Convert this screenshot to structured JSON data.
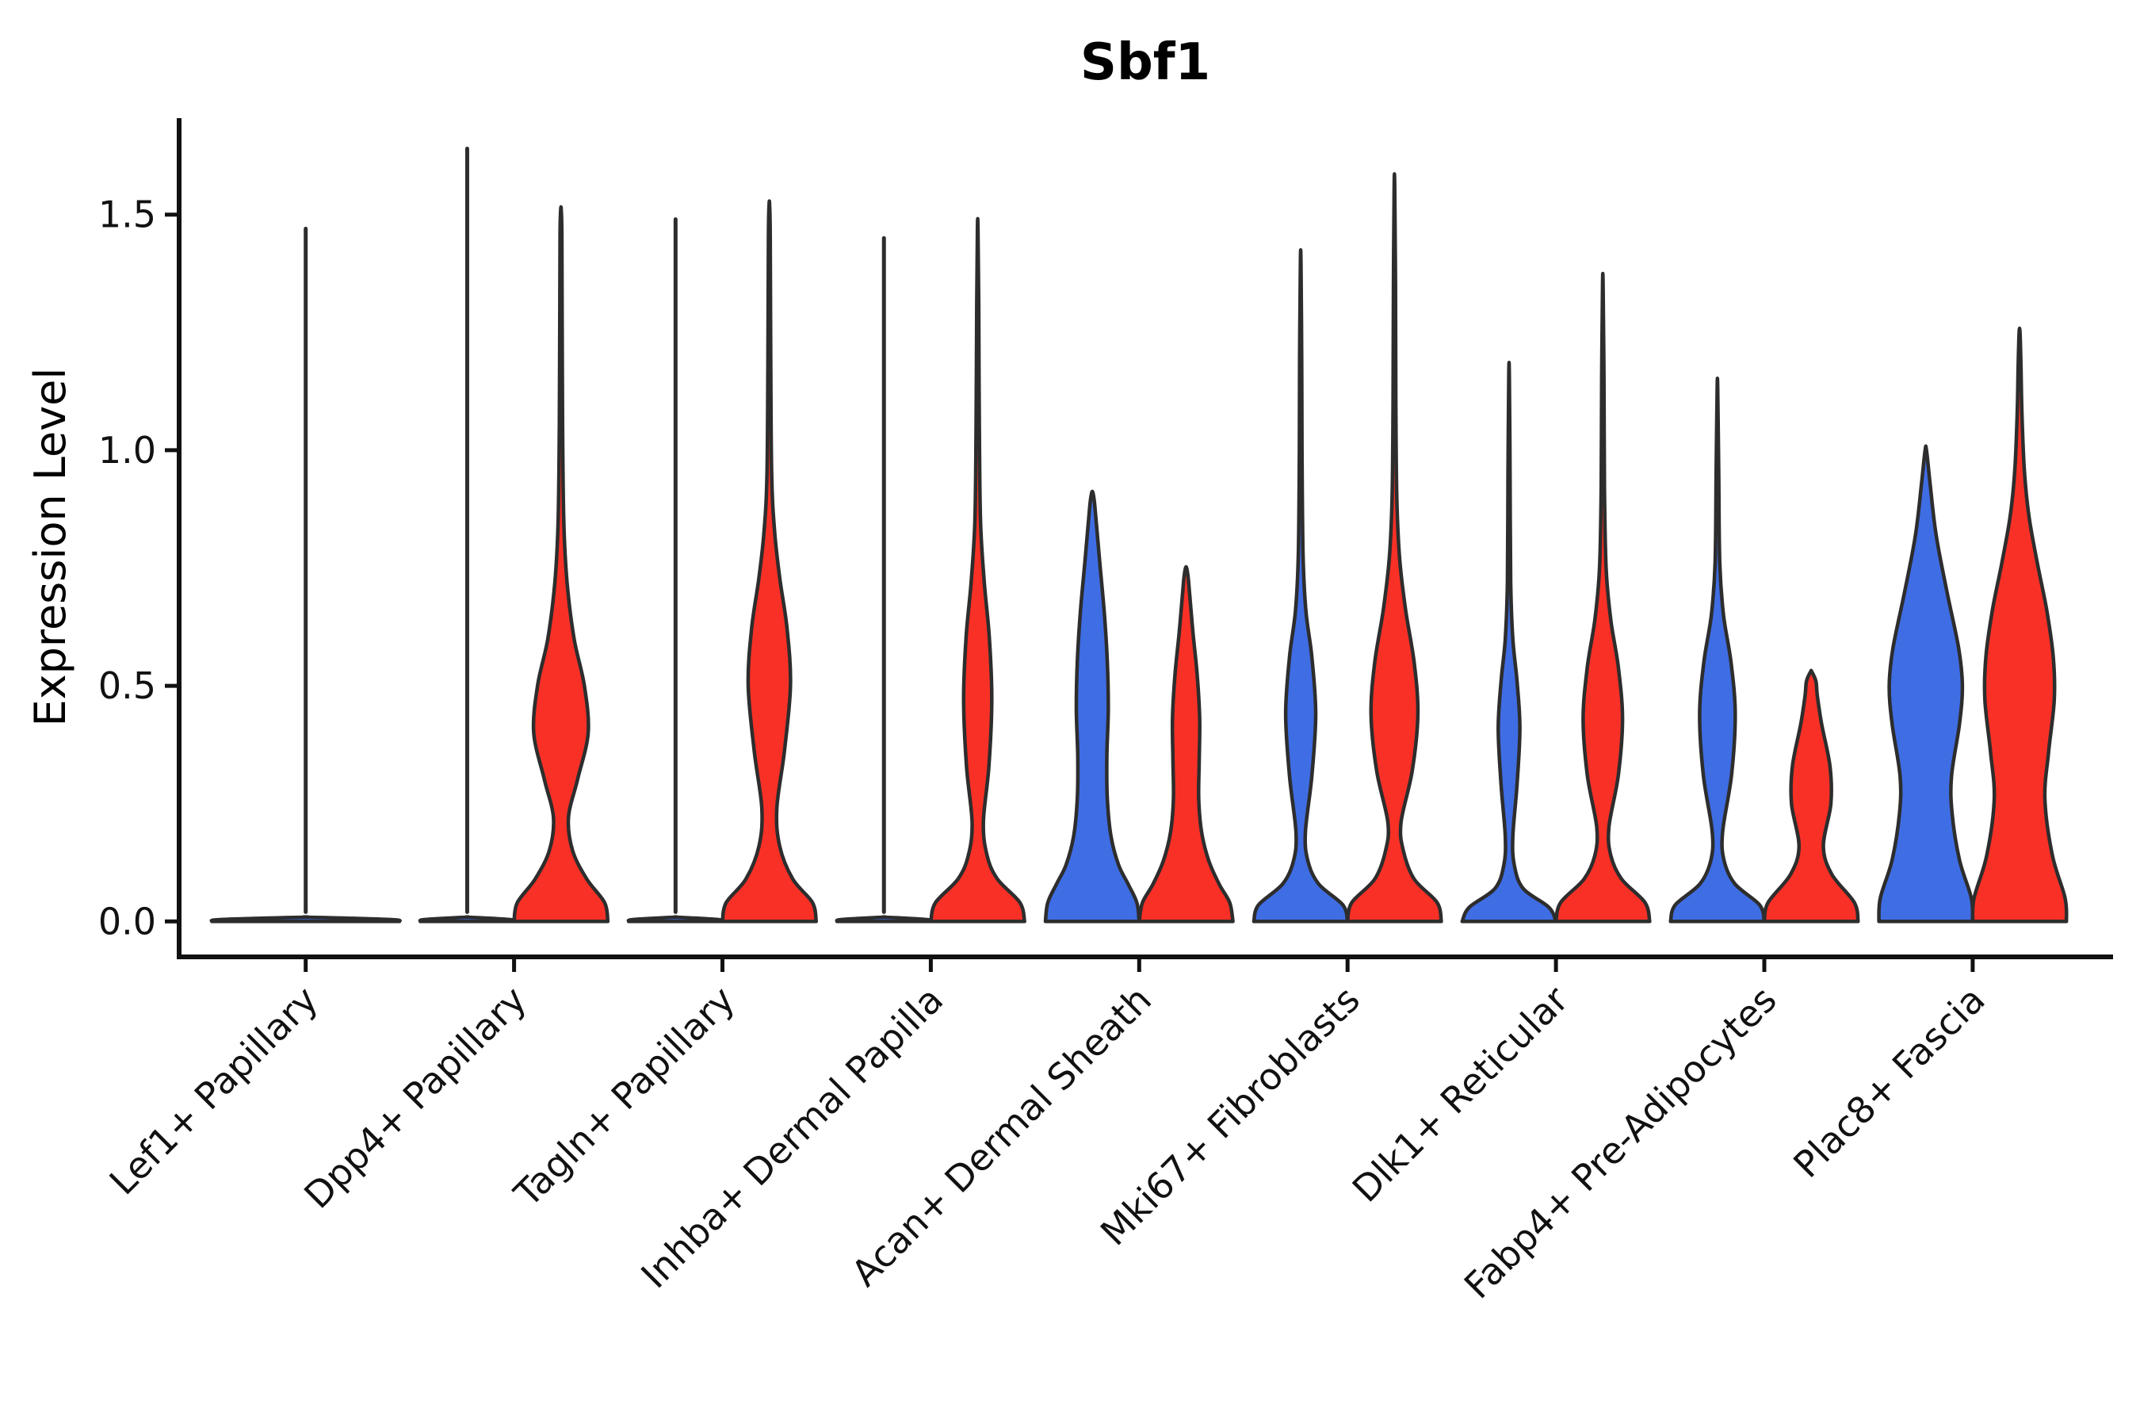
{
  "chart_data": {
    "type": "violin",
    "title": "Sbf1",
    "ylabel": "Expression Level",
    "xlabel": "",
    "grid": false,
    "legend": "none",
    "ylim": [
      -0.08,
      1.705
    ],
    "yticks": [
      0.0,
      0.5,
      1.0,
      1.5
    ],
    "ytick_labels": [
      "0.0",
      "0.5",
      "1.0",
      "1.5"
    ],
    "categories": [
      "Lef1+ Papillary",
      "Dpp4+ Papillary",
      "Tagln+ Papillary",
      "Inhba+ Dermal Papilla",
      "Acan+ Dermal Sheath",
      "Mki67+ Fibroblasts",
      "Dlk1+ Reticular",
      "Fabp4+ Pre-Adipocytes",
      "Plac8+ Fascia"
    ],
    "series": [
      {
        "id": "blue",
        "color": "#3F6DE4"
      },
      {
        "id": "red",
        "color": "#F93026"
      }
    ],
    "edge_color": "#2D2D2D",
    "axis_color": "#111111",
    "line_base_profile": [
      [
        0,
        1
      ],
      [
        0.004,
        0.9
      ],
      [
        0.009,
        0.02
      ]
    ],
    "violins": [
      {
        "category": "Lef1+ Papillary",
        "items": [
          {
            "series": "blue",
            "offset_units": 0,
            "width_units": 0.9,
            "line_only": true,
            "max": 1.47
          }
        ]
      },
      {
        "category": "Dpp4+ Papillary",
        "items": [
          {
            "series": "blue",
            "offset_units": -0.225,
            "width_units": 0.45,
            "line_only": true,
            "max": 1.64
          },
          {
            "series": "red",
            "offset_units": 0.225,
            "width_units": 0.45,
            "max": 1.51,
            "profile": [
              [
                0,
                1
              ],
              [
                0.04,
                0.93
              ],
              [
                0.09,
                0.55
              ],
              [
                0.15,
                0.25
              ],
              [
                0.22,
                0.16
              ],
              [
                0.3,
                0.35
              ],
              [
                0.4,
                0.58
              ],
              [
                0.5,
                0.5
              ],
              [
                0.6,
                0.28
              ],
              [
                0.72,
                0.13
              ],
              [
                0.85,
                0.06
              ],
              [
                1.05,
                0.035
              ],
              [
                1.3,
                0.025
              ],
              [
                1.46,
                0.02
              ],
              [
                1.51,
                0.006
              ]
            ]
          }
        ]
      },
      {
        "category": "Tagln+ Papillary",
        "items": [
          {
            "series": "blue",
            "offset_units": -0.225,
            "width_units": 0.45,
            "line_only": true,
            "max": 1.49
          },
          {
            "series": "red",
            "offset_units": 0.225,
            "width_units": 0.45,
            "max": 1.52,
            "profile": [
              [
                0,
                1
              ],
              [
                0.04,
                0.92
              ],
              [
                0.09,
                0.5
              ],
              [
                0.16,
                0.22
              ],
              [
                0.24,
                0.16
              ],
              [
                0.36,
                0.32
              ],
              [
                0.5,
                0.45
              ],
              [
                0.62,
                0.38
              ],
              [
                0.73,
                0.22
              ],
              [
                0.83,
                0.11
              ],
              [
                0.95,
                0.05
              ],
              [
                1.2,
                0.03
              ],
              [
                1.45,
                0.02
              ],
              [
                1.52,
                0.006
              ]
            ]
          }
        ]
      },
      {
        "category": "Inhba+ Dermal Papilla",
        "items": [
          {
            "series": "blue",
            "offset_units": -0.225,
            "width_units": 0.45,
            "line_only": true,
            "max": 1.45
          },
          {
            "series": "red",
            "offset_units": 0.225,
            "width_units": 0.45,
            "max": 1.47,
            "profile": [
              [
                0,
                1
              ],
              [
                0.04,
                0.9
              ],
              [
                0.09,
                0.42
              ],
              [
                0.14,
                0.2
              ],
              [
                0.21,
                0.12
              ],
              [
                0.33,
                0.24
              ],
              [
                0.47,
                0.3
              ],
              [
                0.6,
                0.25
              ],
              [
                0.72,
                0.14
              ],
              [
                0.85,
                0.06
              ],
              [
                1.05,
                0.035
              ],
              [
                1.3,
                0.022
              ],
              [
                1.47,
                0.006
              ]
            ]
          }
        ]
      },
      {
        "category": "Acan+ Dermal Sheath",
        "items": [
          {
            "series": "blue",
            "offset_units": -0.225,
            "width_units": 0.45,
            "max": 0.91,
            "profile": [
              [
                0,
                1
              ],
              [
                0.04,
                0.95
              ],
              [
                0.08,
                0.76
              ],
              [
                0.12,
                0.56
              ],
              [
                0.18,
                0.4
              ],
              [
                0.26,
                0.32
              ],
              [
                0.35,
                0.31
              ],
              [
                0.45,
                0.34
              ],
              [
                0.55,
                0.32
              ],
              [
                0.65,
                0.26
              ],
              [
                0.75,
                0.17
              ],
              [
                0.84,
                0.09
              ],
              [
                0.89,
                0.045
              ],
              [
                0.91,
                0.012
              ]
            ]
          },
          {
            "series": "red",
            "offset_units": 0.225,
            "width_units": 0.45,
            "max": 0.75,
            "profile": [
              [
                0,
                1
              ],
              [
                0.04,
                0.93
              ],
              [
                0.08,
                0.7
              ],
              [
                0.13,
                0.48
              ],
              [
                0.19,
                0.33
              ],
              [
                0.26,
                0.27
              ],
              [
                0.34,
                0.28
              ],
              [
                0.43,
                0.29
              ],
              [
                0.52,
                0.24
              ],
              [
                0.61,
                0.15
              ],
              [
                0.69,
                0.08
              ],
              [
                0.73,
                0.045
              ],
              [
                0.75,
                0.012
              ]
            ]
          }
        ]
      },
      {
        "category": "Mki67+ Fibroblasts",
        "items": [
          {
            "series": "blue",
            "offset_units": -0.225,
            "width_units": 0.45,
            "max": 1.4,
            "profile": [
              [
                0,
                1
              ],
              [
                0.035,
                0.9
              ],
              [
                0.08,
                0.38
              ],
              [
                0.13,
                0.15
              ],
              [
                0.19,
                0.1
              ],
              [
                0.31,
                0.24
              ],
              [
                0.44,
                0.32
              ],
              [
                0.56,
                0.24
              ],
              [
                0.66,
                0.11
              ],
              [
                0.78,
                0.05
              ],
              [
                1.0,
                0.028
              ],
              [
                1.2,
                0.022
              ],
              [
                1.4,
                0.006
              ]
            ]
          },
          {
            "series": "red",
            "offset_units": 0.225,
            "width_units": 0.45,
            "max": 1.56,
            "profile": [
              [
                0,
                1
              ],
              [
                0.04,
                0.91
              ],
              [
                0.09,
                0.42
              ],
              [
                0.15,
                0.19
              ],
              [
                0.21,
                0.14
              ],
              [
                0.32,
                0.38
              ],
              [
                0.44,
                0.5
              ],
              [
                0.55,
                0.42
              ],
              [
                0.66,
                0.24
              ],
              [
                0.77,
                0.11
              ],
              [
                0.9,
                0.05
              ],
              [
                1.1,
                0.03
              ],
              [
                1.35,
                0.022
              ],
              [
                1.56,
                0.006
              ]
            ]
          }
        ]
      },
      {
        "category": "Dlk1+ Reticular",
        "items": [
          {
            "series": "blue",
            "offset_units": -0.225,
            "width_units": 0.45,
            "max": 1.16,
            "profile": [
              [
                0,
                1
              ],
              [
                0.03,
                0.85
              ],
              [
                0.07,
                0.3
              ],
              [
                0.12,
                0.11
              ],
              [
                0.18,
                0.08
              ],
              [
                0.29,
                0.17
              ],
              [
                0.41,
                0.23
              ],
              [
                0.51,
                0.17
              ],
              [
                0.6,
                0.08
              ],
              [
                0.72,
                0.035
              ],
              [
                0.95,
                0.022
              ],
              [
                1.16,
                0.006
              ]
            ]
          },
          {
            "series": "red",
            "offset_units": 0.225,
            "width_units": 0.45,
            "max": 1.35,
            "profile": [
              [
                0,
                1
              ],
              [
                0.04,
                0.9
              ],
              [
                0.09,
                0.4
              ],
              [
                0.14,
                0.17
              ],
              [
                0.2,
                0.13
              ],
              [
                0.31,
                0.33
              ],
              [
                0.43,
                0.42
              ],
              [
                0.54,
                0.33
              ],
              [
                0.64,
                0.17
              ],
              [
                0.75,
                0.07
              ],
              [
                0.92,
                0.035
              ],
              [
                1.15,
                0.024
              ],
              [
                1.35,
                0.006
              ]
            ]
          }
        ]
      },
      {
        "category": "Fabp4+ Pre-Adipocytes",
        "items": [
          {
            "series": "blue",
            "offset_units": -0.225,
            "width_units": 0.45,
            "max": 1.13,
            "profile": [
              [
                0,
                1
              ],
              [
                0.035,
                0.9
              ],
              [
                0.08,
                0.37
              ],
              [
                0.13,
                0.14
              ],
              [
                0.19,
                0.11
              ],
              [
                0.31,
                0.3
              ],
              [
                0.44,
                0.38
              ],
              [
                0.55,
                0.29
              ],
              [
                0.65,
                0.13
              ],
              [
                0.76,
                0.05
              ],
              [
                0.95,
                0.028
              ],
              [
                1.13,
                0.006
              ]
            ]
          },
          {
            "series": "red",
            "offset_units": 0.225,
            "width_units": 0.45,
            "max": 0.53,
            "profile": [
              [
                0,
                1
              ],
              [
                0.04,
                0.92
              ],
              [
                0.1,
                0.44
              ],
              [
                0.16,
                0.26
              ],
              [
                0.25,
                0.42
              ],
              [
                0.33,
                0.4
              ],
              [
                0.42,
                0.22
              ],
              [
                0.48,
                0.13
              ],
              [
                0.51,
                0.1
              ],
              [
                0.53,
                0.012
              ]
            ]
          }
        ]
      },
      {
        "category": "Plac8+ Fascia",
        "items": [
          {
            "series": "blue",
            "offset_units": -0.225,
            "width_units": 0.45,
            "max": 1.0,
            "profile": [
              [
                0,
                1
              ],
              [
                0.05,
                0.97
              ],
              [
                0.13,
                0.72
              ],
              [
                0.23,
                0.56
              ],
              [
                0.31,
                0.55
              ],
              [
                0.42,
                0.72
              ],
              [
                0.5,
                0.78
              ],
              [
                0.58,
                0.7
              ],
              [
                0.7,
                0.45
              ],
              [
                0.82,
                0.22
              ],
              [
                0.93,
                0.09
              ],
              [
                1.0,
                0.015
              ]
            ]
          },
          {
            "series": "red",
            "offset_units": 0.225,
            "width_units": 0.45,
            "max": 1.25,
            "profile": [
              [
                0,
                1
              ],
              [
                0.05,
                0.97
              ],
              [
                0.14,
                0.7
              ],
              [
                0.26,
                0.54
              ],
              [
                0.36,
                0.62
              ],
              [
                0.47,
                0.74
              ],
              [
                0.56,
                0.72
              ],
              [
                0.66,
                0.58
              ],
              [
                0.76,
                0.38
              ],
              [
                0.86,
                0.2
              ],
              [
                0.96,
                0.1
              ],
              [
                1.08,
                0.05
              ],
              [
                1.18,
                0.03
              ],
              [
                1.25,
                0.01
              ]
            ]
          }
        ]
      }
    ]
  }
}
